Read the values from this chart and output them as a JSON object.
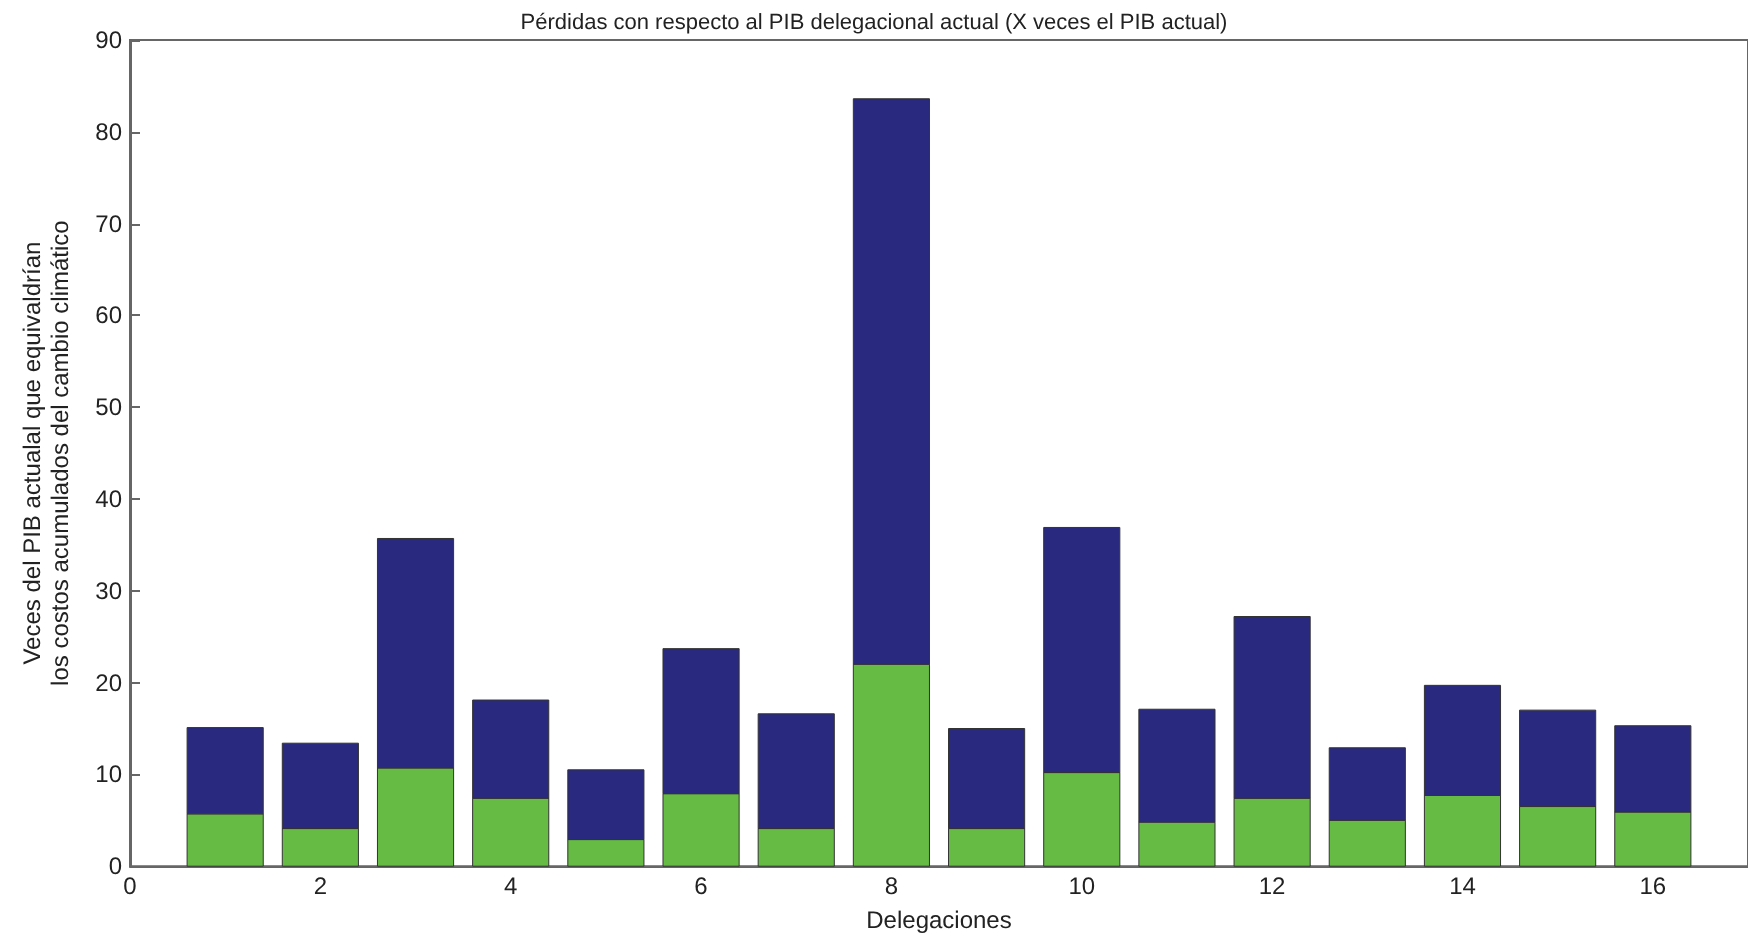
{
  "chart_data": {
    "type": "bar",
    "title": "Pérdidas con respecto al PIB delegacional actual (X veces el PIB actual)",
    "xlabel": "Delegaciones",
    "ylabel": "Veces del PIB actualal que equivaldrían\nlos costos acumulados del cambio climático",
    "x": [
      1,
      2,
      3,
      4,
      5,
      6,
      7,
      8,
      9,
      10,
      11,
      12,
      13,
      14,
      15,
      16
    ],
    "stacked": true,
    "series": [
      {
        "color": "#66bb44",
        "values": [
          5.7,
          4.1,
          10.7,
          7.4,
          2.9,
          7.9,
          4.1,
          22.0,
          4.1,
          10.2,
          4.8,
          7.4,
          5.0,
          7.7,
          6.5,
          5.9
        ]
      },
      {
        "color": "#29297f",
        "values": [
          9.4,
          9.3,
          25.0,
          10.7,
          7.6,
          15.8,
          12.5,
          61.6,
          10.9,
          26.7,
          12.3,
          19.8,
          7.9,
          12.0,
          10.5,
          9.4
        ]
      }
    ],
    "xlim": [
      0,
      17
    ],
    "xticks": [
      0,
      2,
      4,
      6,
      8,
      10,
      12,
      14,
      16
    ],
    "ylim": [
      0,
      90
    ],
    "yticks": [
      0,
      10,
      20,
      30,
      40,
      50,
      60,
      70,
      80,
      90
    ],
    "grid": false
  }
}
